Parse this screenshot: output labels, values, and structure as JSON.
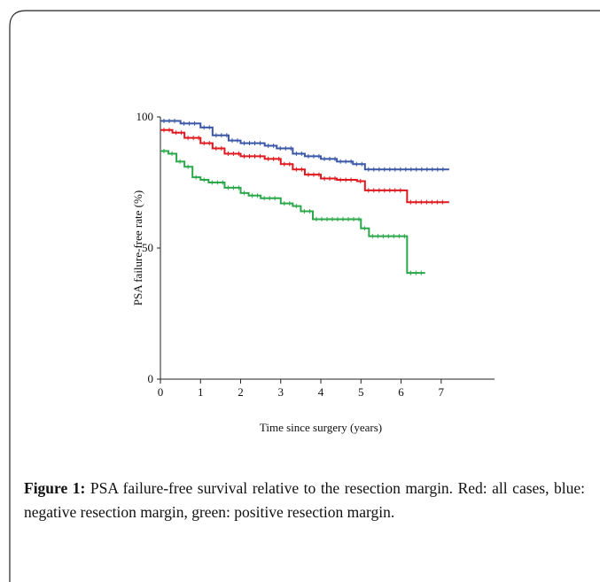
{
  "chart_data": {
    "type": "step",
    "xlabel": "Time since surgery (years)",
    "ylabel": "PSA failure-free rate (%)",
    "xlim": [
      0,
      8.33
    ],
    "xticks": [
      0,
      1,
      2,
      3,
      4,
      5,
      6,
      7
    ],
    "ylim": [
      0,
      100
    ],
    "yticks": [
      0,
      50,
      100
    ],
    "series": [
      {
        "color": "#3a56a6",
        "x": [
          0,
          0.5,
          1,
          1.3,
          1.7,
          2,
          2.6,
          2.9,
          3.3,
          3.6,
          4,
          4.4,
          4.8,
          5.1,
          7.2
        ],
        "values": [
          98.5,
          97.5,
          96,
          93,
          91,
          90,
          89,
          88,
          86,
          85,
          84,
          83,
          82,
          80,
          80
        ]
      },
      {
        "color": "#e0181e",
        "x": [
          0,
          0.3,
          0.6,
          1,
          1.3,
          1.6,
          2,
          2.6,
          3,
          3.3,
          3.6,
          4,
          4.4,
          4.9,
          5.1,
          6.15,
          7.2
        ],
        "values": [
          95,
          94,
          92,
          90,
          88,
          86,
          85,
          84,
          82,
          80,
          78,
          76.5,
          76,
          75.5,
          72,
          67.5,
          67.5
        ]
      },
      {
        "color": "#2aa84a",
        "x": [
          0,
          0.2,
          0.4,
          0.6,
          0.8,
          1,
          1.2,
          1.6,
          2,
          2.2,
          2.5,
          3,
          3.3,
          3.5,
          3.8,
          5,
          5.2,
          6.15,
          6.6
        ],
        "values": [
          87,
          86,
          83,
          81,
          77,
          76,
          75,
          73,
          71,
          70,
          69,
          67,
          66,
          64,
          61,
          57.5,
          54.5,
          40.5,
          40.5
        ]
      }
    ]
  },
  "caption": {
    "label": "Figure 1:",
    "text": " PSA failure-free survival relative to the resection margin. Red: all cases, blue: negative resection margin, green: positive resection margin."
  }
}
